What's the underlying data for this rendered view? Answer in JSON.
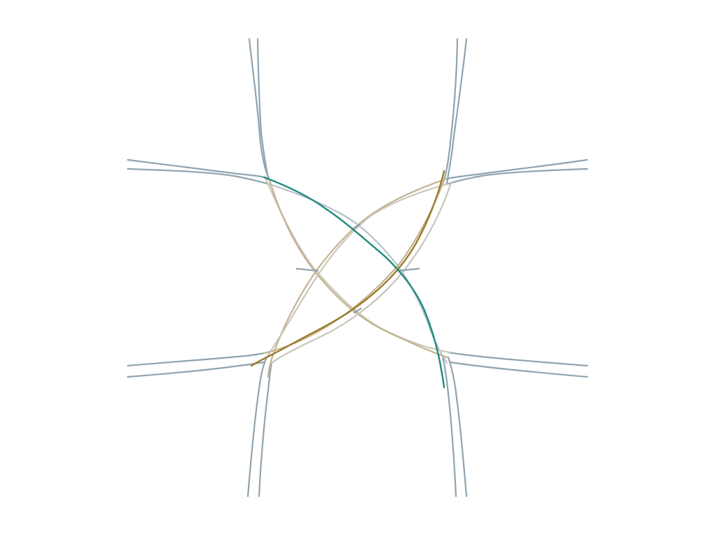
{
  "colors": {
    "background": "#ffffff",
    "road": "#8fa3b0",
    "road_light": "#b4c0c7",
    "link_tan": "#c4b28f",
    "link_light": "#c9c6b8",
    "highlight_gold": "#9a7a2c",
    "highlight_teal": "#1f8a7d"
  },
  "network": {
    "type": "road-network-intersection",
    "approach_arms": 8,
    "highlighted_paths": [
      "gold-connector",
      "teal-connector"
    ]
  }
}
